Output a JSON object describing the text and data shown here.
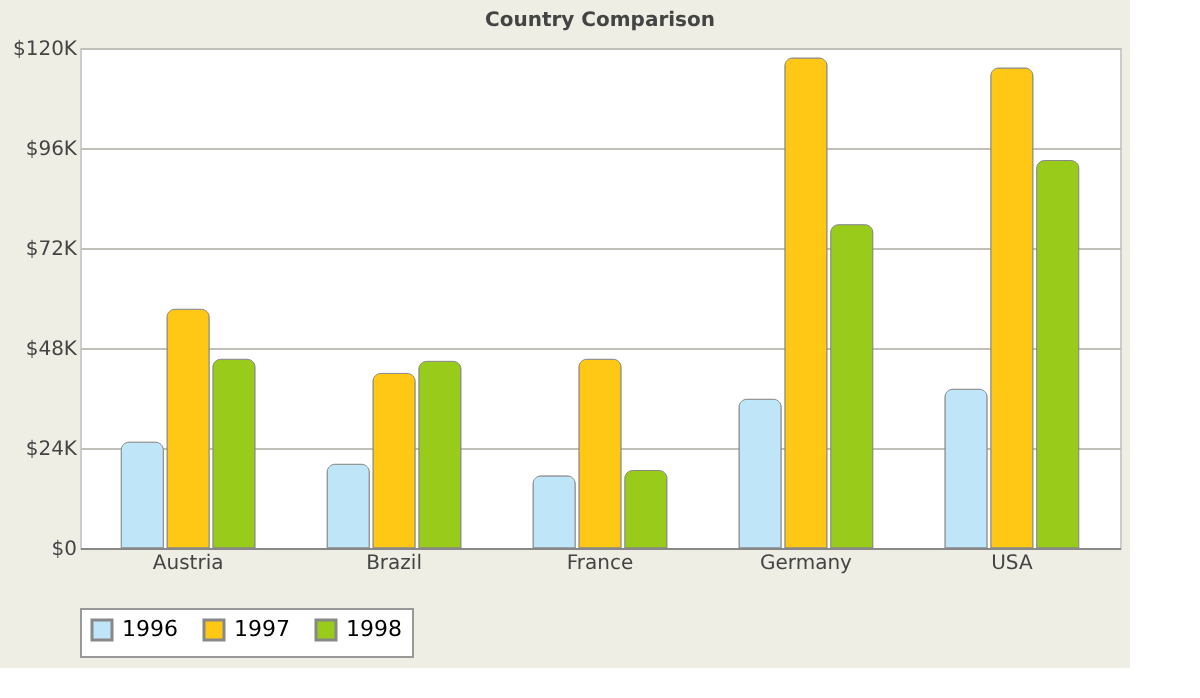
{
  "chart_data": {
    "type": "bar",
    "title": "Country Comparison",
    "categories": [
      "Austria",
      "Brazil",
      "France",
      "Germany",
      "USA"
    ],
    "series": [
      {
        "name": "1996",
        "color": "#bfe6f8",
        "values": [
          25.4,
          20.1,
          17.3,
          35.7,
          38.1
        ]
      },
      {
        "name": "1997",
        "color": "#ffc814",
        "values": [
          57.3,
          41.9,
          45.3,
          117.6,
          115.2
        ]
      },
      {
        "name": "1998",
        "color": "#99cc1a",
        "values": [
          45.3,
          44.8,
          18.6,
          77.6,
          93.0
        ]
      }
    ],
    "ylim": [
      0,
      120
    ],
    "yticks": [
      {
        "value": 0,
        "label": "$0"
      },
      {
        "value": 24,
        "label": "$24K"
      },
      {
        "value": 48,
        "label": "$48K"
      },
      {
        "value": 72,
        "label": "$72K"
      },
      {
        "value": 96,
        "label": "$96K"
      },
      {
        "value": 120,
        "label": "$120K"
      }
    ],
    "grid": "y",
    "legend": "bottom"
  }
}
